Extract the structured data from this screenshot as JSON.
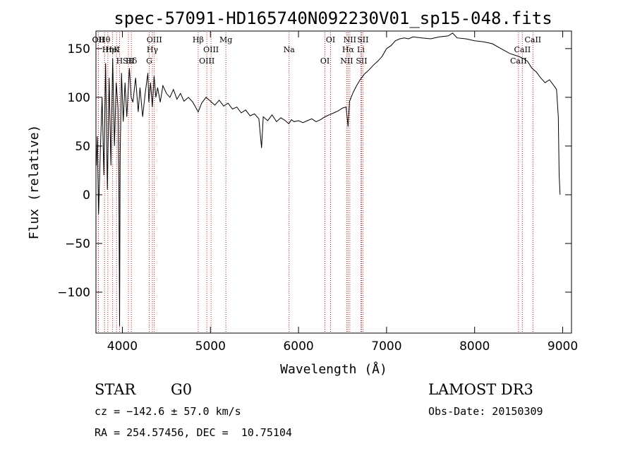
{
  "chart_data": {
    "type": "line",
    "title": "spec-57091-HD165740N092230V01_sp15-048.fits",
    "xlabel": "Wavelength (Å)",
    "ylabel": "Flux (relative)",
    "xlim": [
      3700,
      9100
    ],
    "ylim": [
      -142,
      168
    ],
    "xticks": [
      4000,
      5000,
      6000,
      7000,
      8000,
      9000
    ],
    "xtick_labels": [
      "4000",
      "5000",
      "6000",
      "7000",
      "8000",
      "9000"
    ],
    "yticks": [
      -100,
      -50,
      0,
      50,
      100,
      150
    ],
    "ytick_labels": [
      "−100",
      "−50",
      "0",
      "50",
      "100",
      "150"
    ],
    "series": [
      {
        "name": "flux",
        "x": [
          3705,
          3715,
          3730,
          3750,
          3770,
          3790,
          3810,
          3830,
          3850,
          3870,
          3890,
          3910,
          3930,
          3950,
          3960,
          3968,
          3975,
          3990,
          4010,
          4030,
          4050,
          4080,
          4100,
          4120,
          4150,
          4180,
          4200,
          4230,
          4260,
          4290,
          4300,
          4320,
          4340,
          4360,
          4380,
          4400,
          4430,
          4460,
          4500,
          4540,
          4580,
          4620,
          4660,
          4700,
          4750,
          4800,
          4861,
          4900,
          4950,
          5000,
          5050,
          5100,
          5150,
          5200,
          5250,
          5300,
          5350,
          5400,
          5450,
          5500,
          5550,
          5580,
          5600,
          5650,
          5700,
          5750,
          5800,
          5850,
          5890,
          5920,
          5950,
          6000,
          6050,
          6100,
          6150,
          6200,
          6250,
          6300,
          6350,
          6400,
          6450,
          6500,
          6540,
          6563,
          6580,
          6620,
          6660,
          6700,
          6750,
          6800,
          6850,
          6900,
          6950,
          7000,
          7050,
          7100,
          7150,
          7200,
          7250,
          7300,
          7400,
          7500,
          7600,
          7700,
          7750,
          7800,
          7900,
          8000,
          8100,
          8200,
          8300,
          8400,
          8500,
          8550,
          8600,
          8650,
          8700,
          8750,
          8800,
          8850,
          8900,
          8930,
          8950,
          8960,
          8970
        ],
        "y": [
          30,
          60,
          -20,
          45,
          100,
          20,
          135,
          5,
          120,
          30,
          140,
          50,
          115,
          90,
          10,
          -135,
          40,
          125,
          75,
          115,
          80,
          130,
          100,
          95,
          120,
          85,
          110,
          80,
          105,
          125,
          95,
          115,
          90,
          122,
          100,
          110,
          95,
          112,
          104,
          100,
          108,
          98,
          104,
          96,
          100,
          95,
          85,
          94,
          100,
          96,
          92,
          97,
          91,
          94,
          88,
          90,
          84,
          87,
          81,
          83,
          78,
          48,
          80,
          76,
          82,
          75,
          79,
          76,
          73,
          77,
          75,
          76,
          74,
          76,
          78,
          75,
          77,
          80,
          82,
          84,
          86,
          89,
          90,
          70,
          96,
          105,
          112,
          118,
          124,
          128,
          133,
          137,
          142,
          150,
          153,
          158,
          160,
          161,
          160,
          162,
          161,
          160,
          162,
          163,
          166,
          161,
          160,
          158,
          157,
          155,
          150,
          145,
          142,
          140,
          137,
          130,
          126,
          120,
          115,
          118,
          112,
          108,
          80,
          20,
          0
        ]
      }
    ],
    "lines": [
      {
        "label": "Hθ",
        "x": 3798
      },
      {
        "label": "K",
        "x": 3934
      },
      {
        "label": "Hδ",
        "x": 4102
      },
      {
        "label": "OII",
        "x": 3727
      },
      {
        "label": "HeI",
        "x": 3889
      },
      {
        "label": "SII",
        "x": 4069
      },
      {
        "label": "OII",
        "x": 3727
      },
      {
        "label": "Hη",
        "x": 3835
      },
      {
        "label": "H",
        "x": 3968
      },
      {
        "label": "OIII",
        "x": 4363
      },
      {
        "label": "Hγ",
        "x": 4341
      },
      {
        "label": "G",
        "x": 4305
      },
      {
        "label": "Hβ",
        "x": 4861
      },
      {
        "label": "OIII",
        "x": 5007
      },
      {
        "label": "OIII",
        "x": 4959
      },
      {
        "label": "Mg",
        "x": 5175
      },
      {
        "label": "Na",
        "x": 5893
      },
      {
        "label": "OI",
        "x": 6300
      },
      {
        "label": "OI",
        "x": 6364
      },
      {
        "label": "Hα",
        "x": 6563
      },
      {
        "label": "SII",
        "x": 6716
      },
      {
        "label": "NII",
        "x": 6583
      },
      {
        "label": "Li",
        "x": 6708
      },
      {
        "label": "NII",
        "x": 6548
      },
      {
        "label": "SII",
        "x": 6731
      },
      {
        "label": "CaII",
        "x": 8542
      },
      {
        "label": "CaII",
        "x": 8498
      },
      {
        "label": "CaII",
        "x": 8662
      }
    ]
  },
  "info": {
    "object_class": "STAR",
    "subclass": "G0",
    "survey": "LAMOST DR3",
    "cz": "cz = −142.6 ± 57.0 km/s",
    "obs_date": "Obs-Date: 20150309",
    "coords": "RA = 254.57456, DEC =  10.75104"
  }
}
